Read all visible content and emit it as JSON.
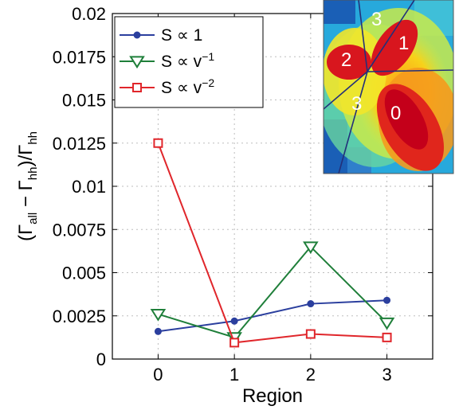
{
  "chart_data": {
    "type": "line",
    "xlabel": "Region",
    "ylabel_main": "(Γ",
    "ylabel_sub1": "all",
    "ylabel_mid": " − Γ",
    "ylabel_sub2": "hh",
    "ylabel_mid2": ")/Γ",
    "ylabel_sub3": "hh",
    "x": [
      0,
      1,
      2,
      3
    ],
    "xlim": [
      -0.6,
      3.6
    ],
    "ylim": [
      0,
      0.02
    ],
    "xticks": [
      "0",
      "1",
      "2",
      "3"
    ],
    "yticks": [
      "0",
      "0.0025",
      "0.005",
      "0.0075",
      "0.01",
      "0.0125",
      "0.015",
      "0.0175",
      "0.02"
    ],
    "grid": true,
    "legend_position": "top-left",
    "series": [
      {
        "name_base": "S ∝ 1",
        "name_sup": "",
        "color": "#2b3f9e",
        "marker": "circle",
        "values": [
          0.0016,
          0.0022,
          0.0032,
          0.0034
        ]
      },
      {
        "name_base": "S ∝ v",
        "name_sup": "−1",
        "color": "#1f7f3a",
        "marker": "triangle-down",
        "values": [
          0.0026,
          0.00125,
          0.0065,
          0.0021
        ]
      },
      {
        "name_base": "S ∝ v",
        "name_sup": "−2",
        "color": "#e0262b",
        "marker": "square",
        "values": [
          0.0125,
          0.00095,
          0.00145,
          0.00125
        ]
      }
    ],
    "inset": {
      "region_labels": [
        "3",
        "1",
        "2",
        "3",
        "0"
      ]
    }
  }
}
